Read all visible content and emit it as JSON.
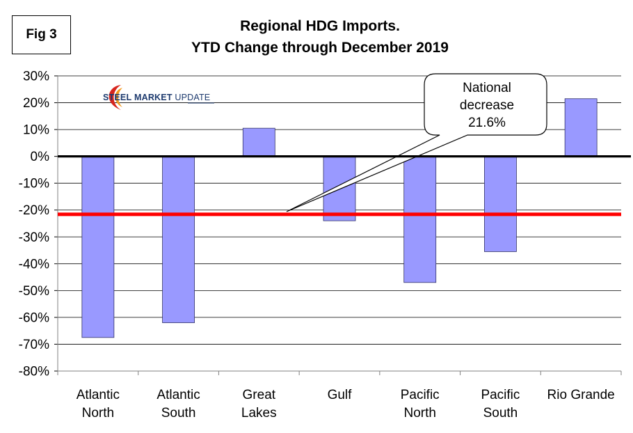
{
  "figure_label": "Fig 3",
  "title_line1": "Regional HDG Imports.",
  "title_line2": "YTD Change through December 2019",
  "logo": {
    "word1": "STEEL",
    "word2": "MARKET",
    "word3": "UPDATE",
    "mark": "swoosh-logo-icon",
    "colors": {
      "text": "#1d3a6e",
      "swoosh_red": "#d7261e",
      "swoosh_orange": "#f39a1e"
    }
  },
  "callout": {
    "line1": "National",
    "line2": "decrease",
    "line3": "21.6%"
  },
  "chart_data": {
    "type": "bar",
    "title": "Regional HDG Imports. YTD Change through December 2019",
    "categories": [
      [
        "Atlantic",
        "North"
      ],
      [
        "Atlantic",
        "South"
      ],
      [
        "Great",
        "Lakes"
      ],
      [
        "Gulf"
      ],
      [
        "Pacific",
        "North"
      ],
      [
        "Pacific",
        "South"
      ],
      [
        "Rio Grande"
      ]
    ],
    "values": [
      -67.5,
      -62.0,
      10.5,
      -24.0,
      -47.0,
      -35.5,
      21.5
    ],
    "ylim": [
      -80,
      30
    ],
    "yticks": [
      30,
      20,
      10,
      0,
      -10,
      -20,
      -30,
      -40,
      -50,
      -60,
      -70,
      -80
    ],
    "ytick_labels": [
      "30%",
      "20%",
      "10%",
      "0%",
      "-10%",
      "-20%",
      "-30%",
      "-40%",
      "-50%",
      "-60%",
      "-70%",
      "-80%"
    ],
    "grid": true,
    "national_line": {
      "value": -21.6,
      "color": "#ff0000"
    },
    "zero_line_color": "#000000",
    "bar_color": "#9999ff",
    "bar_edge_color": "#333366"
  }
}
